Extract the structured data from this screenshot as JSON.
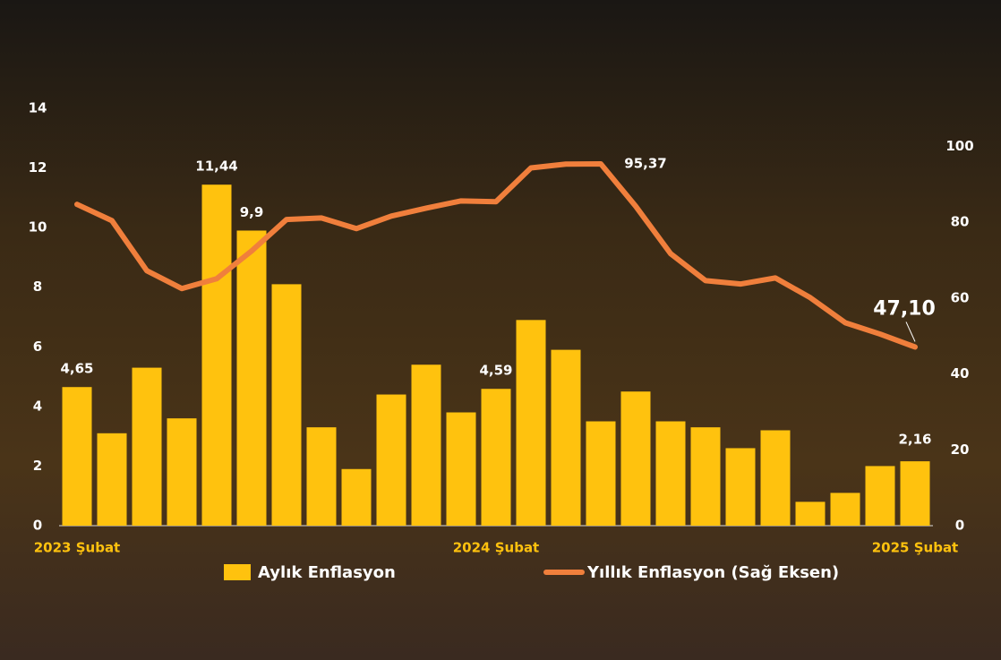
{
  "chart_data": {
    "type": "bar-line",
    "categories": [
      "2023 Şubat",
      null,
      null,
      null,
      null,
      null,
      null,
      null,
      null,
      null,
      null,
      null,
      "2024 Şubat",
      null,
      null,
      null,
      null,
      null,
      null,
      null,
      null,
      null,
      null,
      null,
      "2025 Şubat"
    ],
    "series": [
      {
        "name": "Aylık Enflasyon",
        "color": "#ffc20e",
        "type": "bar",
        "values": [
          4.65,
          3.1,
          5.3,
          3.6,
          11.44,
          9.9,
          8.1,
          3.3,
          1.9,
          4.4,
          5.4,
          3.8,
          4.59,
          6.9,
          5.9,
          3.5,
          4.5,
          3.5,
          3.3,
          2.6,
          3.2,
          0.8,
          1.1,
          2.0,
          2.16
        ],
        "value_labels": [
          "4,65",
          null,
          null,
          null,
          "11,44",
          "9,9",
          null,
          null,
          null,
          null,
          null,
          null,
          "4,59",
          null,
          null,
          null,
          null,
          null,
          null,
          null,
          null,
          null,
          null,
          null,
          "2,16"
        ]
      },
      {
        "name": "Yıllık Enflasyon (Sağ Eksen)",
        "color": "#f07f3c",
        "type": "line",
        "axis": "y2",
        "values": [
          84.7,
          80.4,
          67.2,
          62.5,
          65.1,
          72.4,
          80.7,
          81.1,
          78.3,
          81.6,
          83.7,
          85.6,
          85.4,
          94.3,
          95.3,
          95.37,
          84.2,
          71.7,
          64.6,
          63.7,
          65.3,
          60.1,
          53.5,
          50.5,
          47.1
        ],
        "value_labels": [
          null,
          null,
          null,
          null,
          null,
          null,
          null,
          null,
          null,
          null,
          null,
          null,
          null,
          null,
          null,
          "95,37",
          null,
          null,
          null,
          null,
          null,
          null,
          null,
          null,
          "47,10"
        ]
      }
    ],
    "ylim": [
      0,
      14
    ],
    "yticks": [
      0,
      2,
      4,
      6,
      8,
      10,
      12,
      14
    ],
    "y2lim": [
      0,
      110
    ],
    "y2ticks": [
      0,
      20,
      40,
      60,
      80,
      100
    ]
  }
}
